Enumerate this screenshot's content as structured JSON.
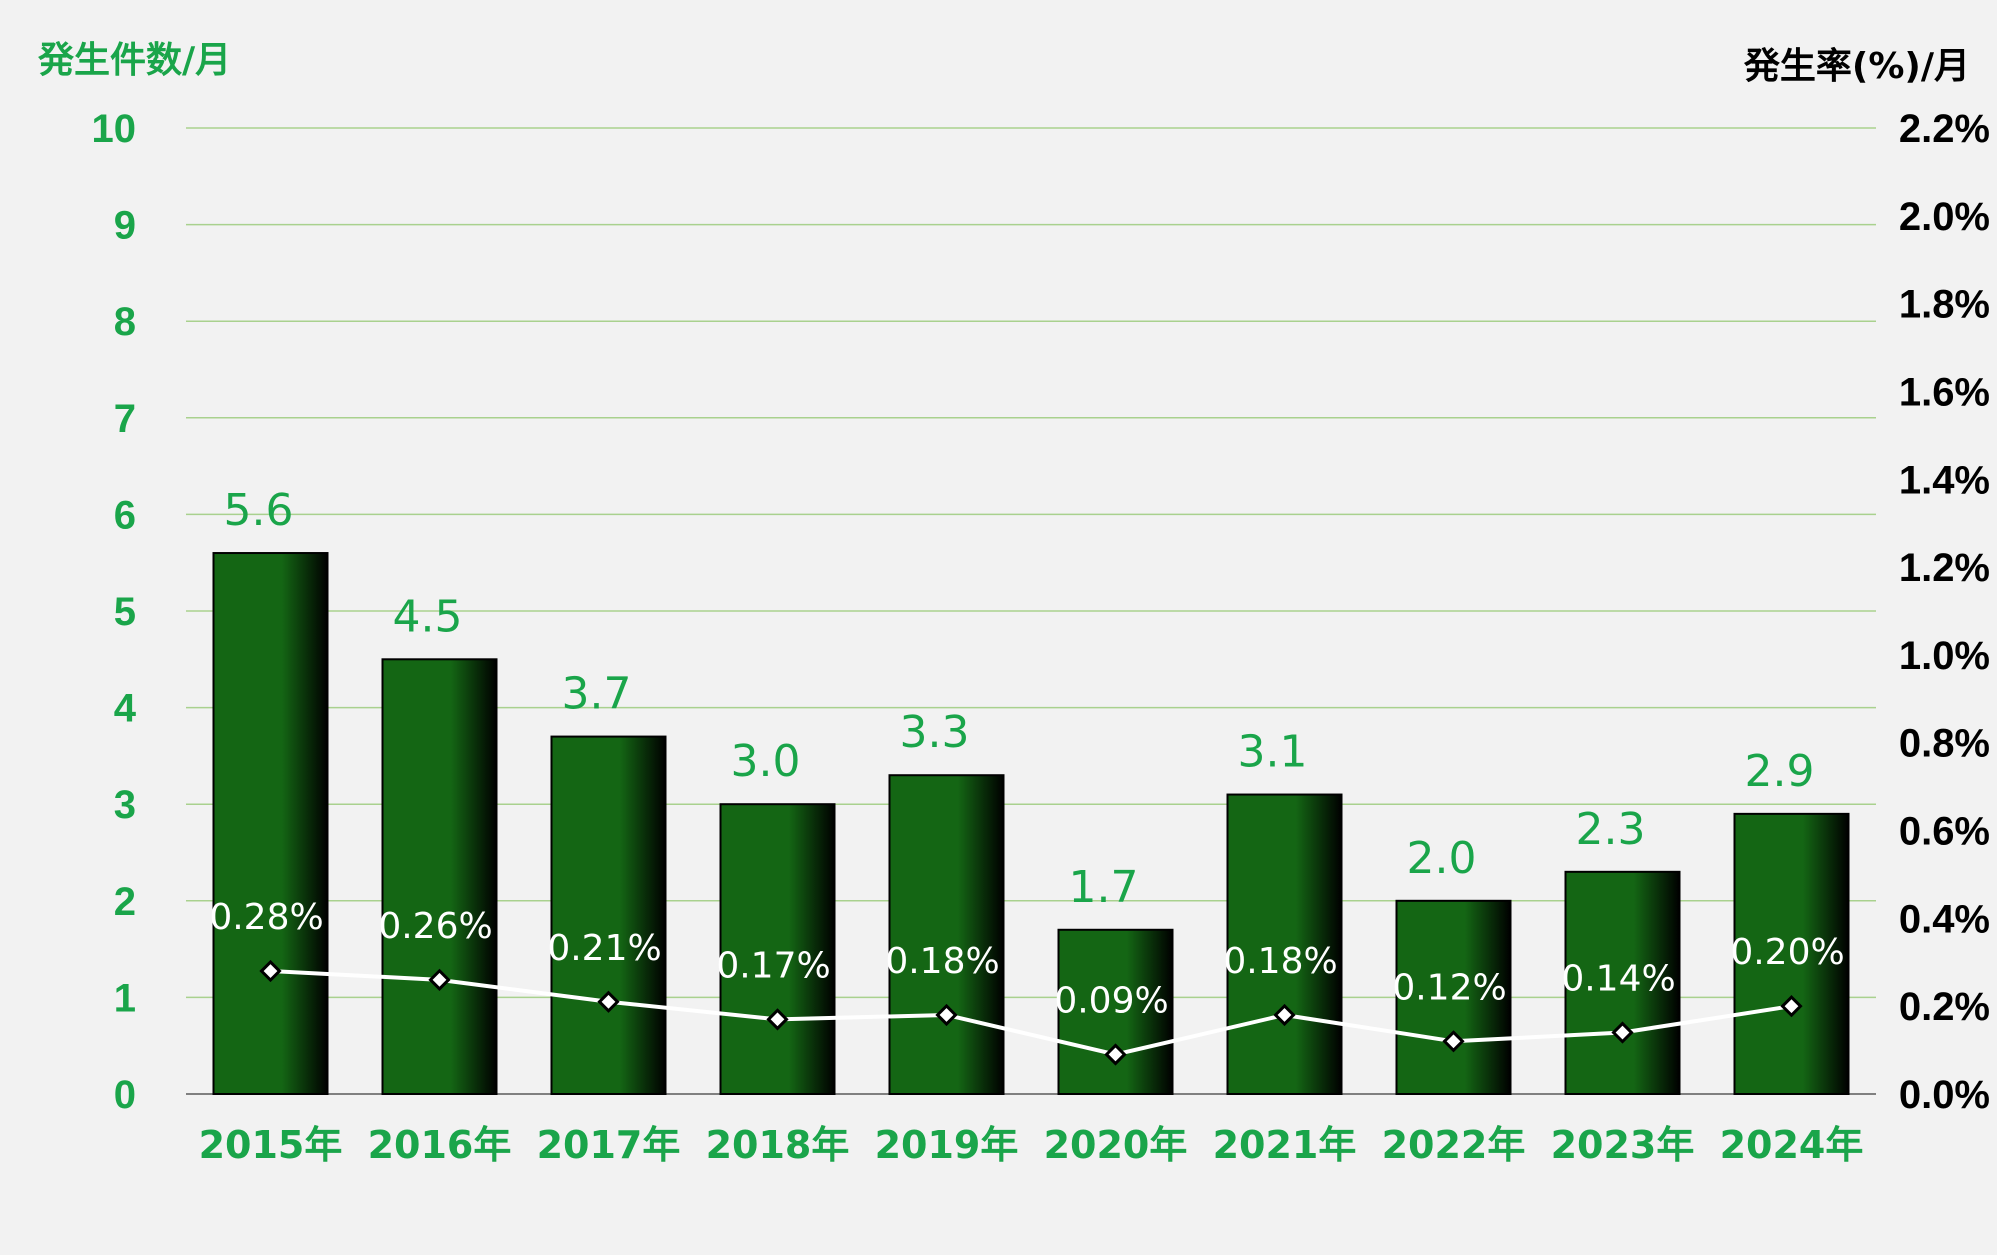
{
  "chart_data": {
    "type": "bar",
    "categories": [
      "2015年",
      "2016年",
      "2017年",
      "2018年",
      "2019年",
      "2020年",
      "2021年",
      "2022年",
      "2023年",
      "2024年"
    ],
    "series": [
      {
        "chart_type": "bar",
        "axis": "left",
        "values": [
          5.6,
          4.5,
          3.7,
          3.0,
          3.3,
          1.7,
          3.1,
          2.0,
          2.3,
          2.9
        ],
        "labels": [
          "5.6",
          "4.5",
          "3.7",
          "3.0",
          "3.3",
          "1.7",
          "3.1",
          "2.0",
          "2.3",
          "2.9"
        ],
        "color": "#146614"
      },
      {
        "chart_type": "line",
        "axis": "right",
        "values": [
          0.28,
          0.26,
          0.21,
          0.17,
          0.18,
          0.09,
          0.18,
          0.12,
          0.14,
          0.2
        ],
        "labels": [
          "0.28%",
          "0.26%",
          "0.21%",
          "0.17%",
          "0.18%",
          "0.09%",
          "0.18%",
          "0.12%",
          "0.14%",
          "0.20%"
        ],
        "color": "#ffffff"
      }
    ],
    "left_axis": {
      "title": "発生件数/月",
      "ylim": [
        0,
        10
      ],
      "ticks": [
        "0",
        "1",
        "2",
        "3",
        "4",
        "5",
        "6",
        "7",
        "8",
        "9",
        "10"
      ]
    },
    "right_axis": {
      "title": "発生率(%)/月",
      "ylim": [
        0,
        2.2
      ],
      "ticks": [
        "0.0%",
        "0.2%",
        "0.4%",
        "0.6%",
        "0.8%",
        "1.0%",
        "1.2%",
        "1.4%",
        "1.6%",
        "1.8%",
        "2.0%",
        "2.2%"
      ]
    },
    "grid": true,
    "legend": "none",
    "colors": {
      "background": "#f2f2f2",
      "accent": "#1aa54a",
      "bar": "#146614",
      "grid": "#a9d18e",
      "line": "#ffffff",
      "right_axis_text": "#000000"
    }
  }
}
